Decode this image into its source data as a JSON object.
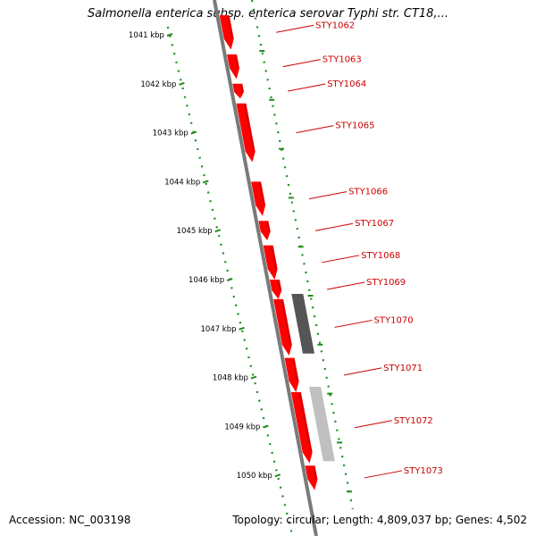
{
  "title": "Salmonella enterica subsp. enterica serovar Typhi str. CT18,...",
  "footer": {
    "accession": "Accession: NC_003198",
    "summary": "Topology: circular; Length: 4,809,037 bp; Genes: 4,502"
  },
  "colors": {
    "ruler": "#1e8c1e",
    "backbone": "#7a7a7a",
    "gene_red": "#ff0000",
    "gene_red_dark": "#b20000",
    "gene_dark_gray": "#555555",
    "gene_light_gray": "#c0c0c0",
    "label_red": "#cc0000"
  },
  "ruler": {
    "ticks": [
      "1041 kbp",
      "1042 kbp",
      "1043 kbp",
      "1044 kbp",
      "1045 kbp",
      "1046 kbp",
      "1047 kbp",
      "1048 kbp",
      "1049 kbp",
      "1050 kbp"
    ]
  },
  "genes": [
    {
      "label": "STY1062",
      "start_kbp": 1040.6,
      "end_kbp": 1041.3,
      "strand": "+",
      "color": "red"
    },
    {
      "label": "STY1063",
      "start_kbp": 1041.4,
      "end_kbp": 1041.9,
      "strand": "+",
      "color": "red"
    },
    {
      "label": "STY1064",
      "start_kbp": 1042.0,
      "end_kbp": 1042.3,
      "strand": "+",
      "color": "red"
    },
    {
      "label": "STY1065",
      "start_kbp": 1042.4,
      "end_kbp": 1043.6,
      "strand": "+",
      "color": "red"
    },
    {
      "label": "STY1066",
      "start_kbp": 1044.0,
      "end_kbp": 1044.7,
      "strand": "+",
      "color": "red"
    },
    {
      "label": "STY1067",
      "start_kbp": 1044.8,
      "end_kbp": 1045.2,
      "strand": "+",
      "color": "red"
    },
    {
      "label": "STY1068",
      "start_kbp": 1045.3,
      "end_kbp": 1046.0,
      "strand": "+",
      "color": "red"
    },
    {
      "label": "STY1069",
      "start_kbp": 1046.0,
      "end_kbp": 1046.4,
      "strand": "+",
      "color": "red"
    },
    {
      "label": "STY1070",
      "start_kbp": 1046.4,
      "end_kbp": 1047.55,
      "strand": "+",
      "color": "red"
    },
    {
      "label": "STY1071",
      "start_kbp": 1047.6,
      "end_kbp": 1048.3,
      "strand": "+",
      "color": "red"
    },
    {
      "label": "STY1072",
      "start_kbp": 1048.3,
      "end_kbp": 1049.75,
      "strand": "+",
      "color": "red"
    },
    {
      "label": "STY1073",
      "start_kbp": 1049.8,
      "end_kbp": 1050.3,
      "strand": "+",
      "color": "red"
    }
  ],
  "features": [
    {
      "start_kbp": 1046.3,
      "end_kbp": 1047.5,
      "color": "dark_gray"
    },
    {
      "start_kbp": 1048.2,
      "end_kbp": 1049.7,
      "color": "light_gray"
    }
  ]
}
